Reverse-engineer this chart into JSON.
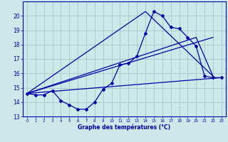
{
  "xlabel": "Graphe des températures (°C)",
  "bg_color": "#cce8e8",
  "grid_color": "#aacccc",
  "line_color": "#0000aa",
  "xlim": [
    -0.5,
    23.5
  ],
  "ylim": [
    13,
    21
  ],
  "yticks": [
    13,
    14,
    15,
    16,
    17,
    18,
    19,
    20
  ],
  "xticks": [
    0,
    1,
    2,
    3,
    4,
    5,
    6,
    7,
    8,
    9,
    10,
    11,
    12,
    13,
    14,
    15,
    16,
    17,
    18,
    19,
    20,
    21,
    22,
    23
  ],
  "series1_x": [
    0,
    1,
    2,
    3,
    4,
    5,
    6,
    7,
    8,
    9,
    10,
    11,
    12,
    13,
    14,
    15,
    16,
    17,
    18,
    19,
    20,
    21,
    22,
    23
  ],
  "series1_y": [
    14.6,
    14.5,
    14.5,
    14.8,
    14.1,
    13.8,
    13.5,
    13.5,
    14.0,
    14.9,
    15.3,
    16.6,
    16.7,
    17.2,
    18.8,
    20.3,
    20.0,
    19.2,
    19.1,
    18.5,
    17.9,
    15.8,
    15.7,
    15.7
  ],
  "series2_x": [
    0,
    23
  ],
  "series2_y": [
    14.6,
    15.7
  ],
  "series3_x": [
    0,
    14,
    22
  ],
  "series3_y": [
    14.6,
    20.3,
    15.8
  ],
  "series4_x": [
    0,
    20,
    22
  ],
  "series4_y": [
    14.6,
    18.5,
    15.8
  ],
  "series5_x": [
    0,
    22
  ],
  "series5_y": [
    14.6,
    18.5
  ]
}
